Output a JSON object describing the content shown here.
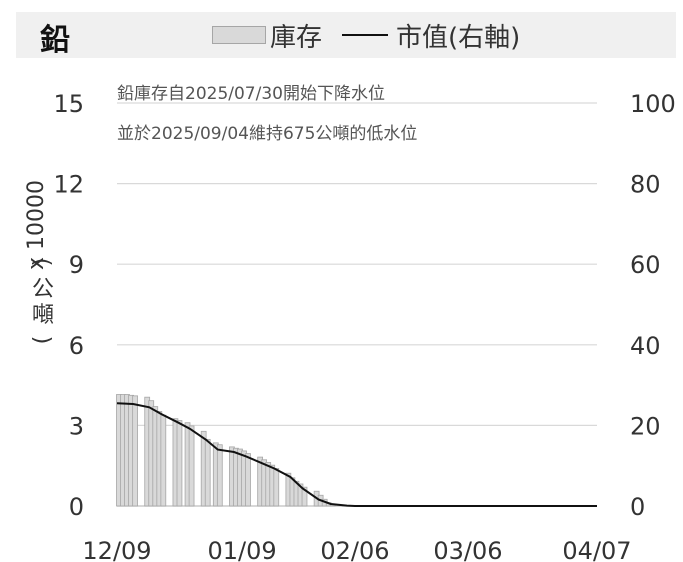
{
  "header": {
    "metal": "鉛"
  },
  "chart_data": {
    "type": "bar+line",
    "legend": {
      "bar_label": "庫存",
      "line_label": "市值(右軸)",
      "placement": "top"
    },
    "y_left": {
      "multiplier_label": "x 10000",
      "unit_label": "(公噸)",
      "lim": [
        0,
        15
      ],
      "ticks": [
        0,
        3,
        6,
        9,
        12,
        15
      ]
    },
    "y_right": {
      "lim": [
        0,
        100
      ],
      "ticks": [
        0,
        20,
        40,
        60,
        80,
        100
      ]
    },
    "x_axis": {
      "lim": [
        "2024-12-09",
        "2025-04-07"
      ],
      "tick_dates": [
        "2024-12-09",
        "2025-01-09",
        "2025-02-06",
        "2025-03-06",
        "2025-04-07"
      ],
      "tick_labels": [
        "12/09",
        "01/09",
        "02/06",
        "03/06",
        "04/07"
      ]
    },
    "annotation": [
      "鉛庫存自2025/07/30開始下降水位",
      "並於2025/09/04維持675公噸的低水位"
    ],
    "grid": true,
    "series": [
      {
        "name": "庫存",
        "kind": "bar",
        "axis": "left",
        "x": [
          "2024-12-09",
          "2024-12-10",
          "2024-12-11",
          "2024-12-12",
          "2024-12-13",
          "2024-12-16",
          "2024-12-17",
          "2024-12-18",
          "2024-12-19",
          "2024-12-20",
          "2024-12-23",
          "2024-12-24",
          "2024-12-26",
          "2024-12-27",
          "2024-12-30",
          "2024-12-31",
          "2025-01-02",
          "2025-01-03",
          "2025-01-06",
          "2025-01-07",
          "2025-01-08",
          "2025-01-09",
          "2025-01-10",
          "2025-01-13",
          "2025-01-14",
          "2025-01-15",
          "2025-01-16",
          "2025-01-17",
          "2025-01-20",
          "2025-01-21",
          "2025-01-22",
          "2025-01-23",
          "2025-01-24",
          "2025-01-27",
          "2025-01-28",
          "2025-01-29",
          "2025-01-30",
          "2025-01-31",
          "2025-02-03",
          "2025-02-04",
          "2025-02-05"
        ],
        "values": [
          4.15,
          4.15,
          4.15,
          4.12,
          4.1,
          4.05,
          3.92,
          3.7,
          3.52,
          3.38,
          3.25,
          3.18,
          3.1,
          2.98,
          2.78,
          2.48,
          2.35,
          2.28,
          2.2,
          2.15,
          2.12,
          2.05,
          1.95,
          1.82,
          1.72,
          1.62,
          1.52,
          1.4,
          1.22,
          1.05,
          0.92,
          0.82,
          0.7,
          0.55,
          0.4,
          0.25,
          0.12,
          0.05,
          0.02,
          0.01,
          0.01
        ]
      },
      {
        "name": "市值(右軸)",
        "kind": "line",
        "axis": "right",
        "x": [
          "2024-12-09",
          "2024-12-13",
          "2024-12-17",
          "2024-12-20",
          "2024-12-24",
          "2024-12-27",
          "2024-12-31",
          "2025-01-03",
          "2025-01-07",
          "2025-01-10",
          "2025-01-14",
          "2025-01-17",
          "2025-01-21",
          "2025-01-24",
          "2025-01-28",
          "2025-01-31",
          "2025-02-04",
          "2025-02-06",
          "2025-03-06",
          "2025-04-07"
        ],
        "values": [
          25.5,
          25.3,
          24.5,
          22.8,
          20.8,
          19.2,
          16.5,
          14.0,
          13.4,
          12.3,
          10.6,
          9.3,
          7.2,
          4.4,
          1.6,
          0.5,
          0.1,
          0.0,
          0.0,
          0.0
        ]
      }
    ]
  }
}
